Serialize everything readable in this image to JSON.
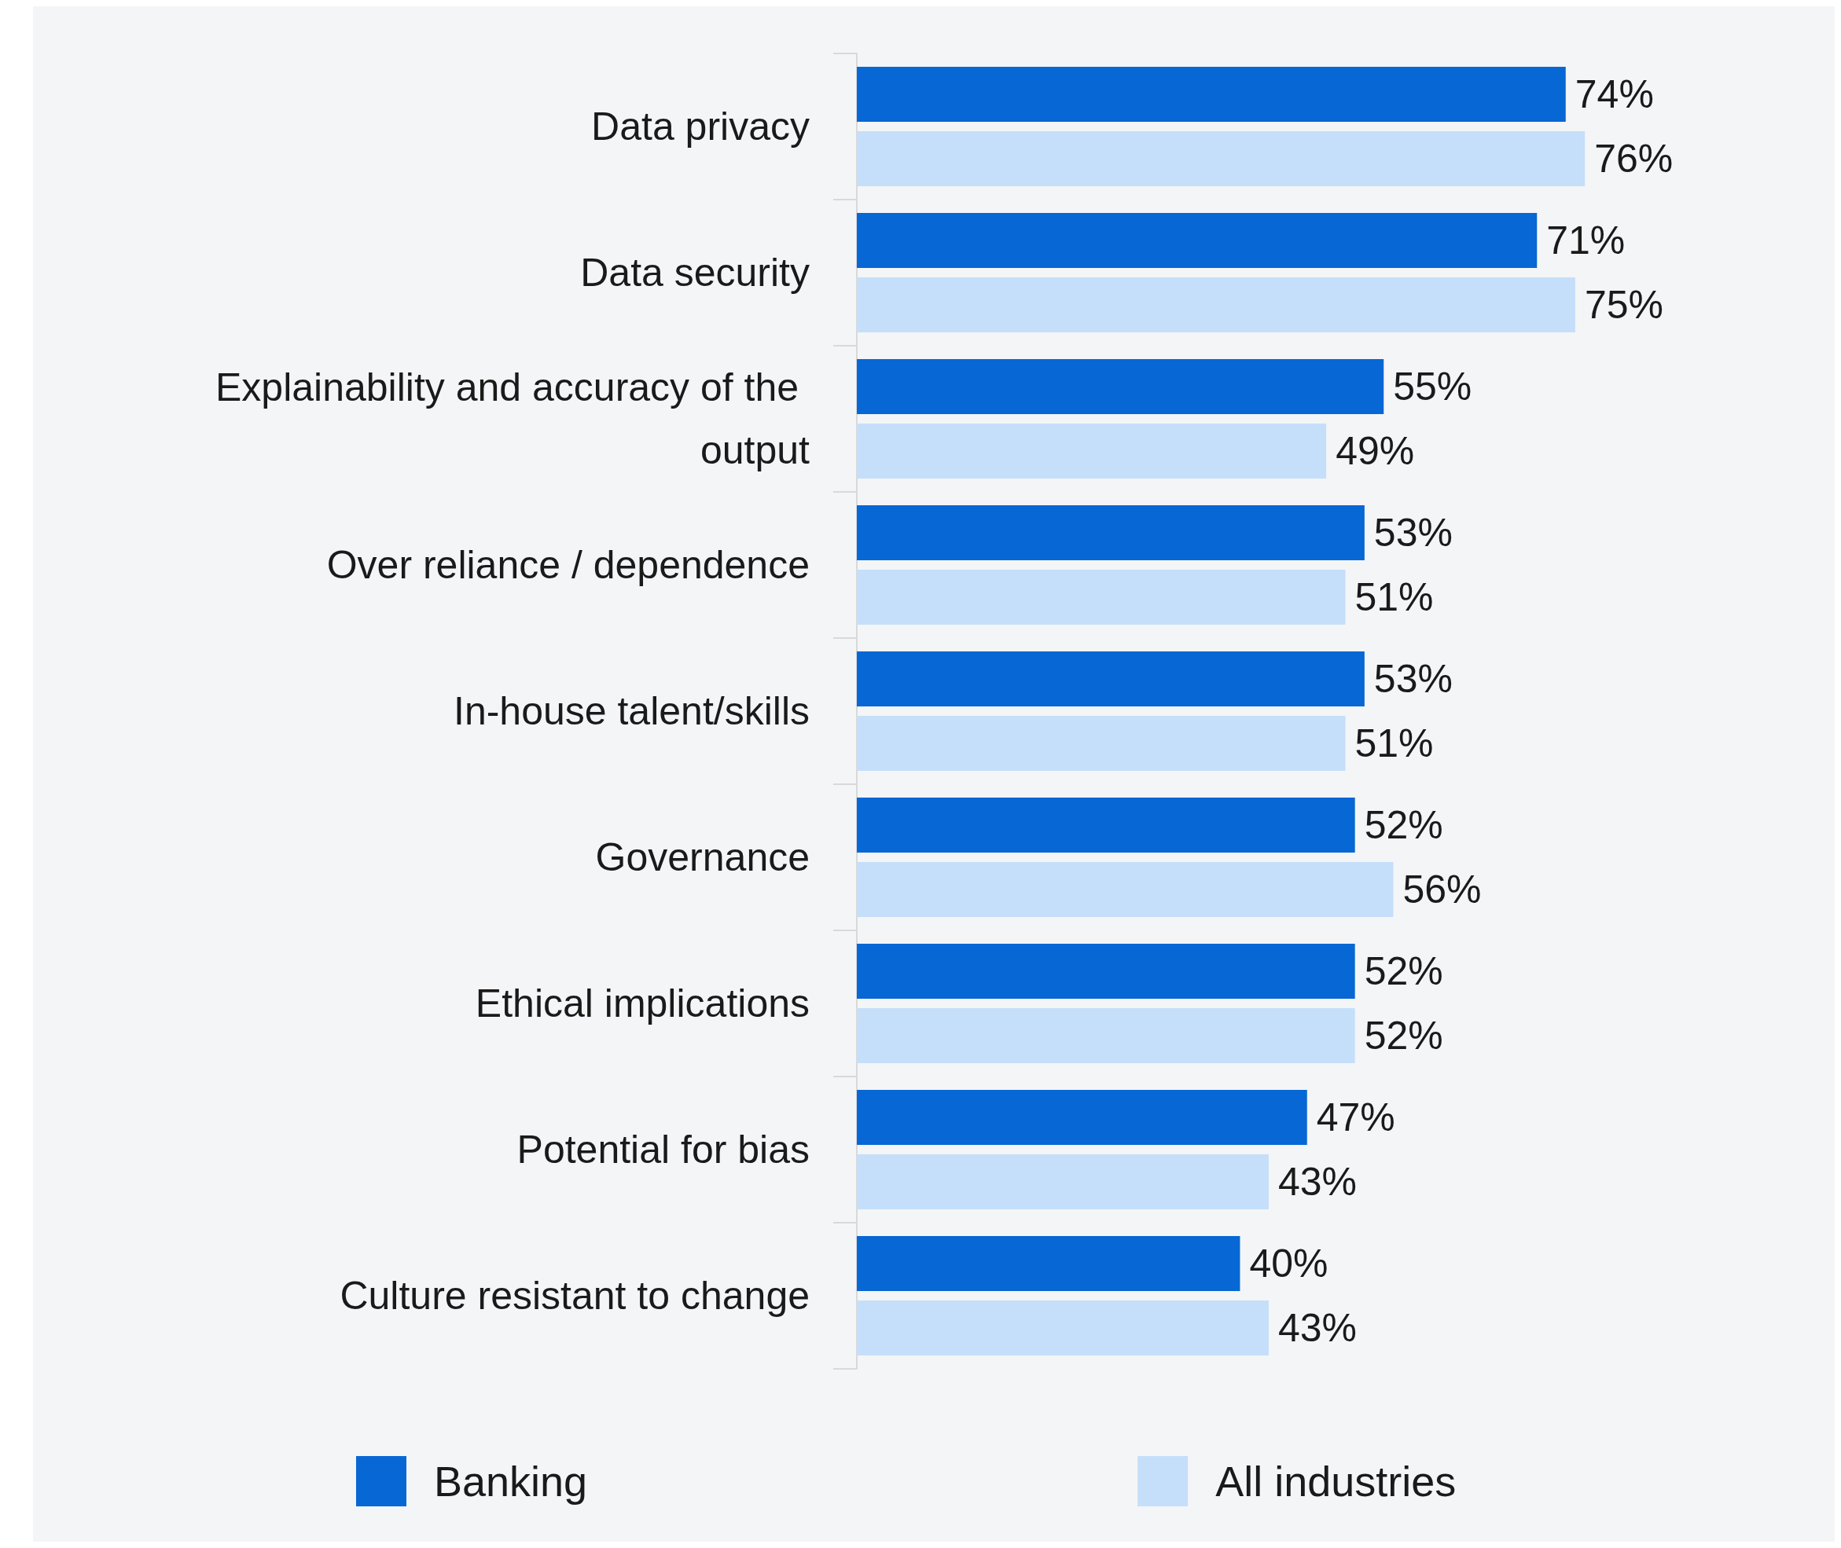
{
  "chart_data": {
    "type": "bar",
    "orientation": "horizontal",
    "categories": [
      "Data privacy",
      "Data security",
      "Explainability and accuracy of the output",
      "Over reliance / dependence",
      "In-house talent/skills",
      "Governance",
      "Ethical implications",
      "Potential for bias",
      "Culture resistant to change"
    ],
    "series": [
      {
        "name": "Banking",
        "color": "#0767d4",
        "values": [
          74,
          71,
          55,
          53,
          53,
          52,
          52,
          47,
          40
        ],
        "value_labels": [
          "74%",
          "71%",
          "55%",
          "53%",
          "53%",
          "52%",
          "52%",
          "47%",
          "40%"
        ]
      },
      {
        "name": "All industries",
        "color": "#c5dffa",
        "values": [
          76,
          75,
          49,
          51,
          51,
          56,
          52,
          43,
          43
        ],
        "value_labels": [
          "76%",
          "75%",
          "49%",
          "51%",
          "51%",
          "56%",
          "52%",
          "43%",
          "43%"
        ]
      }
    ],
    "legend": "bottom"
  }
}
